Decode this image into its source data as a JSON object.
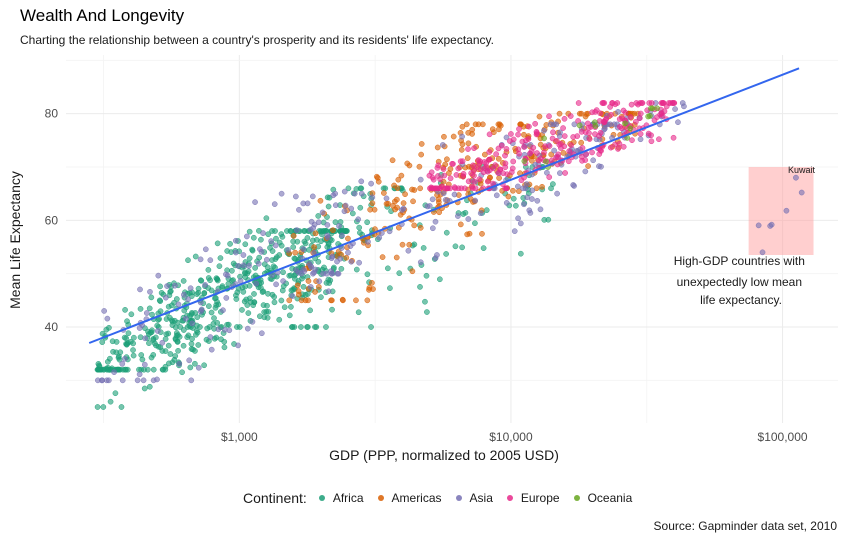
{
  "title": "Wealth And Longevity",
  "subtitle": "Charting the relationship between a country's prosperity and its residents' life expectancy.",
  "caption": "Source:  Gapminder data set, 2010",
  "legend": {
    "title": "Continent:",
    "items": [
      {
        "label": "Africa",
        "color": "#1b9e77"
      },
      {
        "label": "Americas",
        "color": "#d95f02"
      },
      {
        "label": "Asia",
        "color": "#7570b3"
      },
      {
        "label": "Europe",
        "color": "#e7298a"
      },
      {
        "label": "Oceania",
        "color": "#66a61e"
      }
    ]
  },
  "annotation": {
    "text_lines": [
      "High-GDP countries with",
      "unexpectedly low mean",
      "life expectancy."
    ],
    "point_label": "Kuwait",
    "highlight_color": "#ff9f9f"
  },
  "chart_data": {
    "type": "scatter",
    "xlabel": "GDP (PPP, normalized to 2005 USD)",
    "ylabel": "Mean Life Expectancy",
    "x_scale": "log10",
    "xlim": [
      230,
      160000
    ],
    "ylim": [
      22,
      91
    ],
    "x_ticks": [
      {
        "value": 1000,
        "label": "$1,000"
      },
      {
        "value": 10000,
        "label": "$10,000"
      },
      {
        "value": 100000,
        "label": "$100,000"
      }
    ],
    "y_ticks": [
      {
        "value": 40,
        "label": "40"
      },
      {
        "value": 60,
        "label": "60"
      },
      {
        "value": 80,
        "label": "80"
      }
    ],
    "grid": true,
    "legend_position": "bottom",
    "trend_line": {
      "color": "#3366ee",
      "points": [
        [
          280,
          37
        ],
        [
          115000,
          88.5
        ]
      ]
    },
    "highlight_region": {
      "x": [
        75000,
        130000
      ],
      "y": [
        53.5,
        70
      ]
    },
    "labeled_point": {
      "x": 112000,
      "y": 68,
      "label": "Kuwait"
    },
    "series": [
      {
        "name": "Africa",
        "color": "#1b9e77",
        "clusters": [
          {
            "x_range": [
              300,
              2500
            ],
            "y_range": [
              32,
              58
            ],
            "count": 420
          },
          {
            "x_range": [
              500,
              4000
            ],
            "y_range": [
              40,
              66
            ],
            "count": 140
          },
          {
            "x_range": [
              1500,
              15000
            ],
            "y_range": [
              40,
              70
            ],
            "count": 80
          },
          {
            "x_range": [
              300,
              1000
            ],
            "y_range": [
              25,
              40
            ],
            "count": 25
          }
        ]
      },
      {
        "name": "Americas",
        "color": "#d95f02",
        "clusters": [
          {
            "x_range": [
              1500,
              12000
            ],
            "y_range": [
              45,
              78
            ],
            "count": 140
          },
          {
            "x_range": [
              3000,
              30000
            ],
            "y_range": [
              62,
              80
            ],
            "count": 150
          }
        ]
      },
      {
        "name": "Asia",
        "color": "#7570b3",
        "clusters": [
          {
            "x_range": [
              300,
              3000
            ],
            "y_range": [
              30,
              65
            ],
            "count": 120
          },
          {
            "x_range": [
              1500,
              25000
            ],
            "y_range": [
              50,
              78
            ],
            "count": 120
          },
          {
            "x_range": [
              8000,
              45000
            ],
            "y_range": [
              66,
              82
            ],
            "count": 60
          },
          {
            "x_range": [
              80000,
              120000
            ],
            "y_range": [
              54,
              70
            ],
            "count": 6
          }
        ]
      },
      {
        "name": "Europe",
        "color": "#e7298a",
        "clusters": [
          {
            "x_range": [
              5000,
              40000
            ],
            "y_range": [
              66,
              82
            ],
            "count": 260
          }
        ]
      },
      {
        "name": "Oceania",
        "color": "#66a61e",
        "clusters": [
          {
            "x_range": [
              10000,
              35000
            ],
            "y_range": [
              70,
              81
            ],
            "count": 15
          }
        ]
      }
    ]
  }
}
